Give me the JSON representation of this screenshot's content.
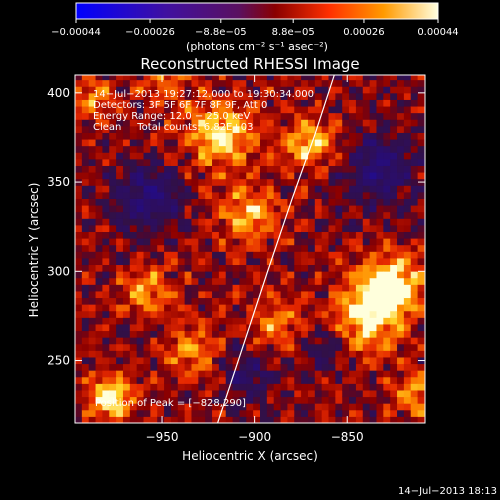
{
  "chart_data": {
    "type": "heatmap",
    "title": "Reconstructed RHESSI Image",
    "xlabel": "Heliocentric X (arcsec)",
    "ylabel": "Heliocentric Y (arcsec)",
    "xlim": [
      -997,
      -808
    ],
    "ylim": [
      215,
      410
    ],
    "x_ticks": [
      -950,
      -900,
      -850
    ],
    "x_tick_labels": [
      "−950",
      "−900",
      "−850"
    ],
    "y_ticks": [
      250,
      300,
      350,
      400
    ],
    "y_tick_labels": [
      "250",
      "300",
      "350",
      "400"
    ],
    "colorbar": {
      "colormap": "hot-violet",
      "range": [
        -0.00044,
        0.00044
      ],
      "ticks": [
        -0.00044,
        -0.00026,
        -8.8e-05,
        8.8e-05,
        0.00026,
        0.00044
      ],
      "tick_labels": [
        "−0.00044",
        "−0.00026",
        "−8.8e−05",
        "8.8e−05",
        "0.00026",
        "0.00044"
      ],
      "unit_label": "(photons cm⁻² s⁻¹ asec⁻²)"
    },
    "annotations": [
      "14−Jul−2013 19:27:12.000 to 19:30:34.000",
      "Detectors: 3F 5F 6F 7F 8F 9F, Att 0",
      "Energy Range: 12.0 − 25.0 keV",
      "Clean     Total counts: 6.82E+03"
    ],
    "peak_label": "Position of Peak = [−828,290]",
    "peak": [
      -828,
      290
    ],
    "limb_curve": [
      [
        -920,
        215
      ],
      [
        -905,
        262
      ],
      [
        -893,
        300
      ],
      [
        -880,
        340
      ],
      [
        -868,
        375
      ],
      [
        -857,
        410
      ]
    ],
    "hotspots": [
      {
        "x": -920,
        "y": 375,
        "level": 0.78,
        "radius": 18
      },
      {
        "x": -872,
        "y": 370,
        "level": 0.72,
        "radius": 14
      },
      {
        "x": -905,
        "y": 330,
        "level": 0.6,
        "radius": 16
      },
      {
        "x": -828,
        "y": 290,
        "level": 1.0,
        "radius": 17
      },
      {
        "x": -842,
        "y": 272,
        "level": 0.75,
        "radius": 18
      },
      {
        "x": -980,
        "y": 228,
        "level": 0.92,
        "radius": 12
      },
      {
        "x": -960,
        "y": 288,
        "level": 0.55,
        "radius": 14
      },
      {
        "x": -935,
        "y": 255,
        "level": 0.5,
        "radius": 14
      },
      {
        "x": -890,
        "y": 268,
        "level": 0.48,
        "radius": 14
      },
      {
        "x": -990,
        "y": 395,
        "level": 0.5,
        "radius": 12
      },
      {
        "x": -950,
        "y": 405,
        "level": 0.45,
        "radius": 12
      },
      {
        "x": -815,
        "y": 230,
        "level": 0.55,
        "radius": 12
      }
    ],
    "coldspots": [
      {
        "x": -960,
        "y": 340,
        "level": -0.55,
        "radius": 18
      },
      {
        "x": -835,
        "y": 355,
        "level": -0.5,
        "radius": 20
      },
      {
        "x": -905,
        "y": 240,
        "level": -0.4,
        "radius": 14
      },
      {
        "x": -865,
        "y": 255,
        "level": -0.35,
        "radius": 12
      }
    ]
  },
  "footer_date": "14−Jul−2013 18:13"
}
